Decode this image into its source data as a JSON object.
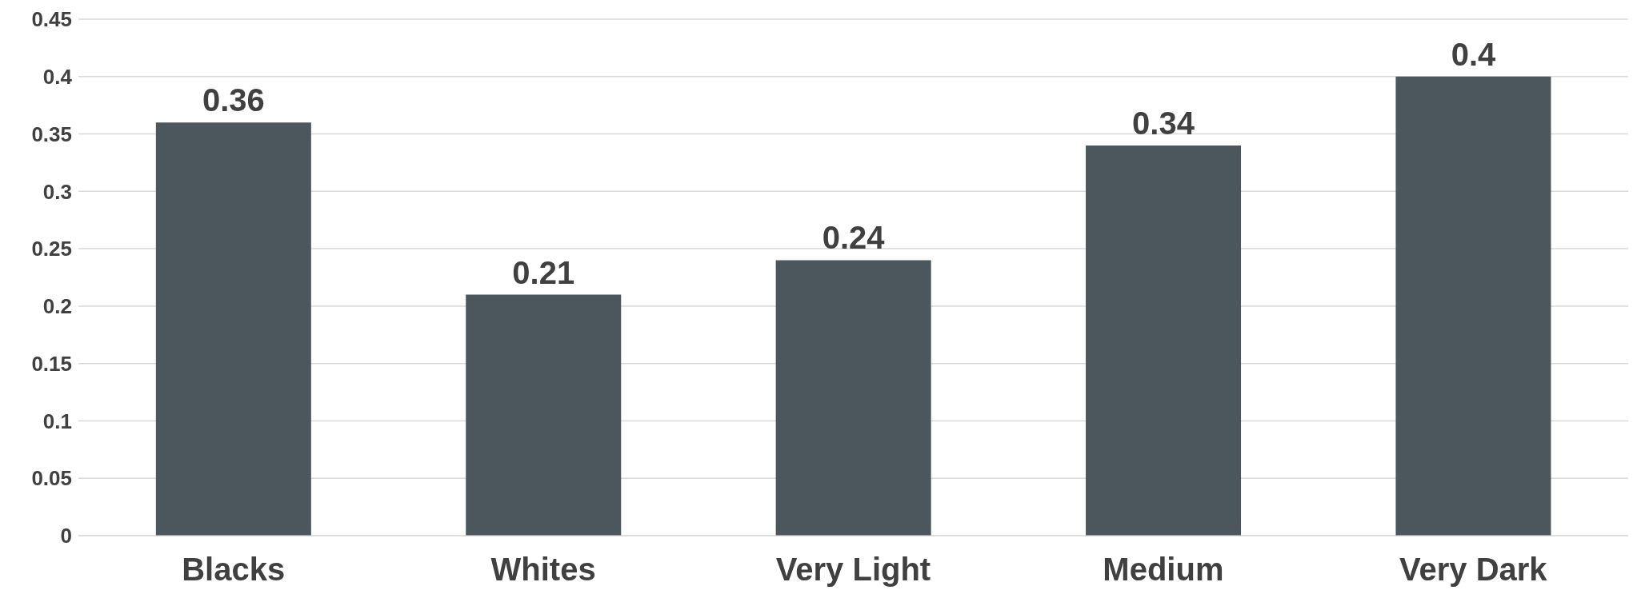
{
  "chart_data": {
    "type": "bar",
    "categories": [
      "Blacks",
      "Whites",
      "Very Light",
      "Medium",
      "Very Dark"
    ],
    "values": [
      0.36,
      0.21,
      0.24,
      0.34,
      0.4
    ],
    "color": "#4b565d",
    "ylim": [
      0,
      0.45
    ],
    "yticks": [
      0,
      0.05,
      0.1,
      0.15,
      0.2,
      0.25,
      0.3,
      0.35,
      0.4,
      0.45
    ],
    "grid": "y",
    "data_labels": true
  }
}
